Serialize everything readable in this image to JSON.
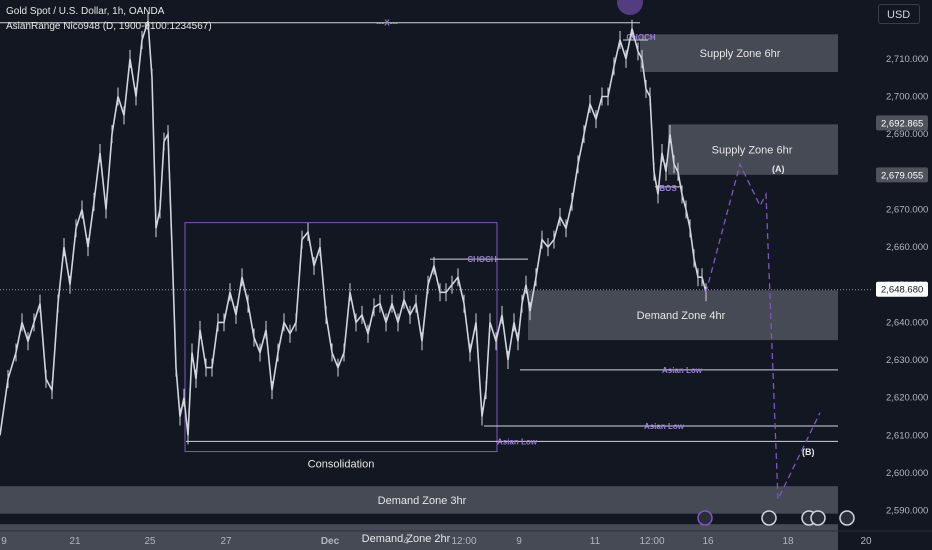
{
  "header": {
    "symbol_line": "Gold Spot / U.S. Dollar, 1h, OANDA",
    "indicator_line": "AsianRange Nico948 (D, 1900-0100:1234567)",
    "currency_button": "USD"
  },
  "price_labels": {
    "last_price": "2,648.680",
    "upper_level": "2,692.865",
    "lower_level": "2,679.055"
  },
  "colors": {
    "background": "#131722",
    "candle": "#d1d4dc",
    "zone_fill": "#50535e",
    "annotation_purple": "#7e57c2",
    "label_purple": "#9b7fd4"
  },
  "chart_data": {
    "type": "candlestick",
    "title": "Gold Spot / U.S. Dollar, 1h, OANDA",
    "y_axis": {
      "ticks": [
        2590,
        2600,
        2610,
        2620,
        2630,
        2640,
        2650,
        2660,
        2670,
        2680,
        2690,
        2700,
        2710
      ],
      "tick_labels": [
        "2,590.000",
        "2,600.000",
        "2,610.000",
        "2,620.000",
        "2,630.000",
        "2,640.000",
        "2,650.000",
        "2,660.000",
        "2,670.000",
        "2,680.000",
        "2,690.000",
        "2,700.000",
        "2,710.000"
      ],
      "ylim": [
        2584,
        2721
      ]
    },
    "x_axis": {
      "tick_labels": [
        "9",
        "21",
        "25",
        "27",
        "Dec",
        "4",
        "12:00",
        "9",
        "11",
        "12:00",
        "16",
        "18",
        "20"
      ]
    },
    "price_path": [
      [
        0,
        2610
      ],
      [
        8,
        2625
      ],
      [
        16,
        2632
      ],
      [
        22,
        2640
      ],
      [
        28,
        2635
      ],
      [
        34,
        2640
      ],
      [
        40,
        2645
      ],
      [
        46,
        2625
      ],
      [
        52,
        2622
      ],
      [
        58,
        2645
      ],
      [
        64,
        2660
      ],
      [
        70,
        2650
      ],
      [
        76,
        2665
      ],
      [
        82,
        2670
      ],
      [
        88,
        2660
      ],
      [
        94,
        2672
      ],
      [
        100,
        2685
      ],
      [
        106,
        2670
      ],
      [
        112,
        2690
      ],
      [
        118,
        2700
      ],
      [
        124,
        2695
      ],
      [
        130,
        2710
      ],
      [
        136,
        2700
      ],
      [
        142,
        2715
      ],
      [
        148,
        2720
      ],
      [
        152,
        2705
      ],
      [
        156,
        2665
      ],
      [
        160,
        2670
      ],
      [
        164,
        2688
      ],
      [
        168,
        2690
      ],
      [
        172,
        2660
      ],
      [
        176,
        2628
      ],
      [
        180,
        2615
      ],
      [
        184,
        2620
      ],
      [
        188,
        2610
      ],
      [
        192,
        2632
      ],
      [
        196,
        2625
      ],
      [
        200,
        2638
      ],
      [
        206,
        2628
      ],
      [
        212,
        2628
      ],
      [
        218,
        2640
      ],
      [
        224,
        2640
      ],
      [
        230,
        2648
      ],
      [
        236,
        2642
      ],
      [
        242,
        2652
      ],
      [
        248,
        2645
      ],
      [
        254,
        2636
      ],
      [
        260,
        2632
      ],
      [
        266,
        2638
      ],
      [
        272,
        2622
      ],
      [
        278,
        2632
      ],
      [
        284,
        2640
      ],
      [
        290,
        2637
      ],
      [
        296,
        2640
      ],
      [
        302,
        2662
      ],
      [
        308,
        2664
      ],
      [
        314,
        2655
      ],
      [
        320,
        2660
      ],
      [
        326,
        2642
      ],
      [
        332,
        2632
      ],
      [
        338,
        2628
      ],
      [
        344,
        2632
      ],
      [
        350,
        2648
      ],
      [
        356,
        2640
      ],
      [
        362,
        2642
      ],
      [
        368,
        2637
      ],
      [
        374,
        2644
      ],
      [
        380,
        2645
      ],
      [
        386,
        2640
      ],
      [
        392,
        2645
      ],
      [
        398,
        2640
      ],
      [
        404,
        2646
      ],
      [
        410,
        2642
      ],
      [
        416,
        2645
      ],
      [
        422,
        2635
      ],
      [
        428,
        2650
      ],
      [
        434,
        2655
      ],
      [
        440,
        2648
      ],
      [
        446,
        2648
      ],
      [
        452,
        2650
      ],
      [
        458,
        2652
      ],
      [
        464,
        2645
      ],
      [
        470,
        2632
      ],
      [
        476,
        2640
      ],
      [
        482,
        2615
      ],
      [
        486,
        2622
      ],
      [
        490,
        2640
      ],
      [
        496,
        2635
      ],
      [
        502,
        2642
      ],
      [
        508,
        2630
      ],
      [
        514,
        2640
      ],
      [
        518,
        2635
      ],
      [
        522,
        2645
      ],
      [
        526,
        2650
      ],
      [
        530,
        2643
      ],
      [
        536,
        2652
      ],
      [
        542,
        2662
      ],
      [
        548,
        2660
      ],
      [
        554,
        2662
      ],
      [
        560,
        2668
      ],
      [
        566,
        2665
      ],
      [
        572,
        2672
      ],
      [
        578,
        2682
      ],
      [
        584,
        2690
      ],
      [
        590,
        2698
      ],
      [
        596,
        2694
      ],
      [
        602,
        2700
      ],
      [
        608,
        2700
      ],
      [
        614,
        2708
      ],
      [
        620,
        2715
      ],
      [
        626,
        2710
      ],
      [
        632,
        2718
      ],
      [
        638,
        2712
      ],
      [
        642,
        2710
      ],
      [
        646,
        2702
      ],
      [
        650,
        2700
      ],
      [
        654,
        2680
      ],
      [
        658,
        2674
      ],
      [
        662,
        2685
      ],
      [
        666,
        2680
      ],
      [
        670,
        2690
      ],
      [
        674,
        2682
      ],
      [
        678,
        2680
      ],
      [
        682,
        2674
      ],
      [
        686,
        2670
      ],
      [
        690,
        2665
      ],
      [
        694,
        2657
      ],
      [
        698,
        2652
      ],
      [
        702,
        2652
      ],
      [
        706,
        2648
      ]
    ],
    "zones": [
      {
        "label": "Supply Zone 6hr",
        "y_top": 2716.5,
        "y_bottom": 2706.5,
        "x_start": 640
      },
      {
        "label": "Supply Zone 6hr",
        "y_top": 2692.6,
        "y_bottom": 2679.2,
        "x_start": 668
      },
      {
        "label": "Demand Zone 4hr",
        "y_top": 2648.5,
        "y_bottom": 2635.3,
        "x_start": 528
      },
      {
        "label": "Demand Zone 3hr",
        "y_top": 2596.5,
        "y_bottom": 2589.2
      },
      {
        "label": "Demand Zone 2hr",
        "y_top": 2586.4,
        "y_bottom": 2579
      }
    ],
    "levels": [
      {
        "label": "CHOCH",
        "y": 2656.8,
        "x_start": 430,
        "x_end": 528
      },
      {
        "label": "CHOCH",
        "y": 2715,
        "x_start": 623,
        "x_end": 648
      },
      {
        "label": "BOS",
        "y": 2676,
        "x_start": 655,
        "x_end": 680
      },
      {
        "label": "Asian Low",
        "y": 2627.4,
        "x_start": 520,
        "x_end": 838
      },
      {
        "label": "Asian Low",
        "y": 2612.5,
        "x_start": 484,
        "x_end": 838
      },
      {
        "label": "Asian Low",
        "y": 2608.4,
        "x_start": 186,
        "x_end": 838
      },
      {
        "label": "---X---",
        "y": 2719.6,
        "x_start": 0,
        "x_end": 640
      }
    ],
    "consolidation": {
      "label": "Consolidation",
      "y_top": 2666.5,
      "y_bottom": 2605.7,
      "x_start": 185,
      "x_end": 497
    },
    "projection": {
      "points": [
        [
          706,
          2648
        ],
        [
          740,
          2682
        ],
        [
          760,
          2671
        ],
        [
          766,
          2674
        ],
        [
          778,
          2593
        ],
        [
          820,
          2616
        ]
      ],
      "labels": [
        "(A)",
        "(B)"
      ]
    }
  }
}
